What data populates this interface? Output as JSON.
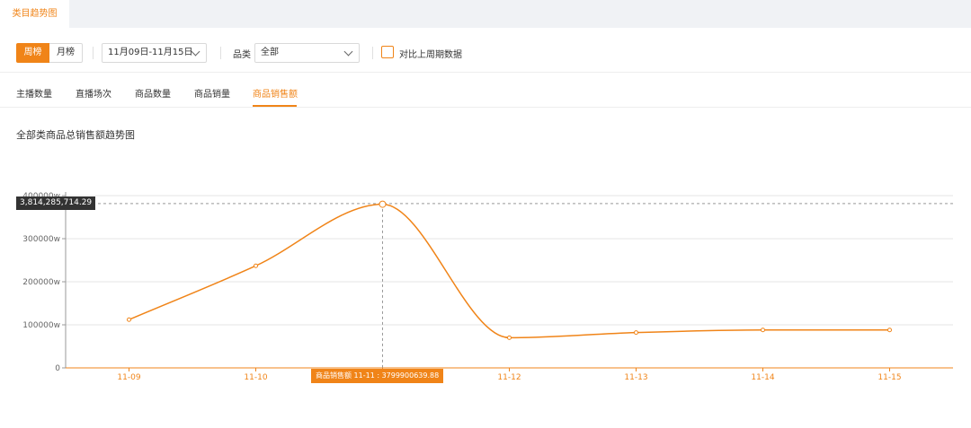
{
  "header": {
    "tab_label": "类目趋势图"
  },
  "filters": {
    "period_buttons": [
      "周榜",
      "月榜"
    ],
    "date_range": "11月09日-11月15日",
    "category_label": "品类",
    "category_value": "全部",
    "compare_label": "对比上周期数据"
  },
  "metric_tabs": [
    "主播数量",
    "直播场次",
    "商品数量",
    "商品销量",
    "商品销售额"
  ],
  "active_metric": "商品销售额",
  "chart_title": "全部类商品总销售额趋势图",
  "tooltip": {
    "y_value": "3,814,285,714.29",
    "x_label": "商品销售额  11-11    : 3799900639.88"
  },
  "colors": {
    "accent": "#f08418",
    "grid": "#e6e6e6"
  },
  "chart_data": {
    "type": "line",
    "title": "全部类商品总销售额趋势图",
    "x": [
      "11-09",
      "11-10",
      "11-11",
      "11-12",
      "11-13",
      "11-14",
      "11-15"
    ],
    "series": [
      {
        "name": "商品销售额",
        "values": [
          1120000000,
          2370000000,
          3799900639.88,
          700000000,
          820000000,
          880000000,
          880000000
        ]
      }
    ],
    "yticks": [
      "0",
      "100000w",
      "200000w",
      "300000w",
      "400000w"
    ],
    "ylim": [
      0,
      4000000000
    ],
    "grid": true,
    "crosshair_category": "11-11",
    "crosshair_value": 3814285714.29
  }
}
